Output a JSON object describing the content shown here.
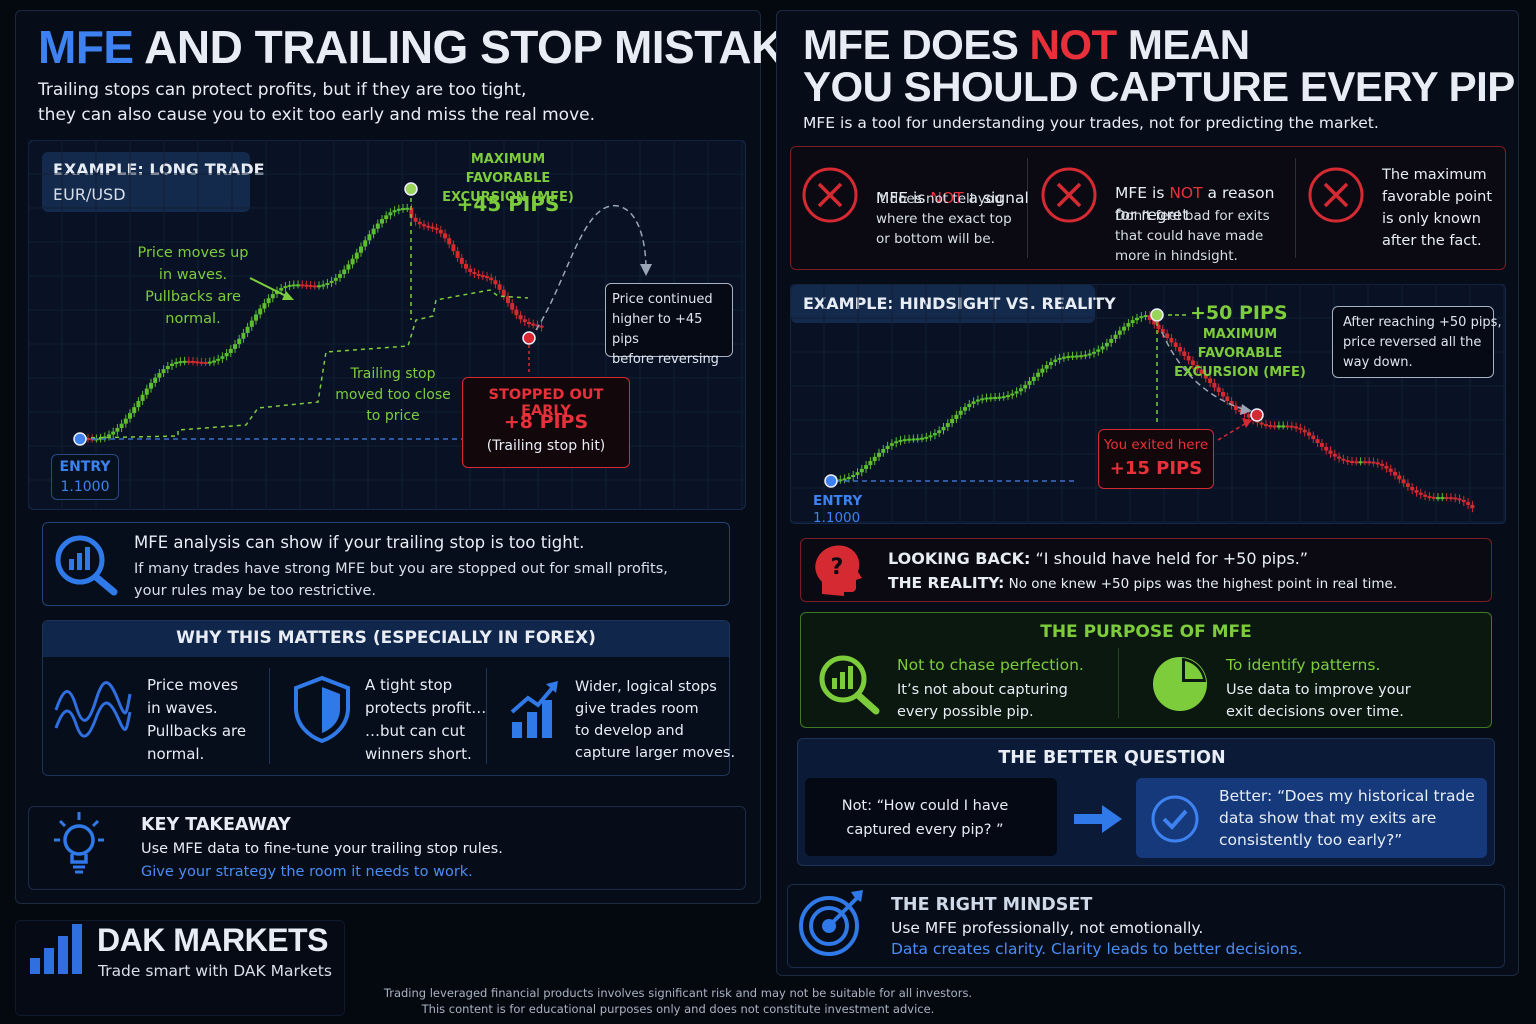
{
  "left": {
    "title_accent": "MFE",
    "title_rest": " AND TRAILING STOP MISTAKES",
    "subtitle": "Trailing stops can protect profits, but if they are too tight,\nthey can also cause you to exit too early and miss the real move.",
    "example": {
      "heading": "EXAMPLE: LONG TRADE",
      "pair": "EUR/USD"
    },
    "mfe_label": "MAXIMUM FAVORABLE\nEXCURSION (MFE)",
    "mfe_value": "+45 PIPS",
    "waves_note": "Price moves up\nin waves.\nPullbacks are\nnormal.",
    "trailing_note": "Trailing stop\nmoved too close\nto price",
    "continued_note": "Price continued\nhigher to +45 pips\nbefore reversing",
    "stopped": {
      "title": "STOPPED OUT EARLY",
      "value": "+8 PIPS",
      "sub": "(Trailing stop hit)"
    },
    "entry": {
      "label": "ENTRY",
      "price": "1.1000"
    },
    "analysis": {
      "title": "MFE analysis can show if your trailing stop is too tight.",
      "body": "If many trades have strong MFE but you are stopped out for small profits,\nyour rules may be too restrictive."
    },
    "why": {
      "heading": "WHY THIS MATTERS (ESPECIALLY IN FOREX)",
      "items": [
        {
          "icon": "wave-icon",
          "text": "Price moves\nin waves.\nPullbacks are\nnormal."
        },
        {
          "icon": "shield-icon",
          "text": "A tight stop\nprotects profit…\n…but can cut\nwinners short."
        },
        {
          "icon": "growth-chart-icon",
          "text": "Wider, logical stops\ngive trades room\nto develop and\ncapture larger moves."
        }
      ]
    },
    "takeaway": {
      "title": "KEY TAKEAWAY",
      "line1": "Use MFE data to fine-tune your trailing stop rules.",
      "line2": "Give your strategy the room it needs to work."
    }
  },
  "brand": {
    "name": "DAK MARKETS",
    "tagline": "Trade smart with DAK Markets"
  },
  "disclaimer": {
    "line1": "Trading leveraged financial products involves significant risk and may not be suitable for all investors.",
    "line2": "This content is for educational purposes only and does not constitute investment advice."
  },
  "right": {
    "title_l1a": "MFE DOES ",
    "title_l1b": "NOT",
    "title_l1c": " MEAN",
    "title_l2": "YOU SHOULD CAPTURE EVERY PIP",
    "subtitle": "MFE is a tool for understanding your trades, not for predicting the market.",
    "nots": [
      {
        "pre": "MFE is ",
        "not": "NOT",
        "post": " a signal",
        "body": "It does not tell you\nwhere the exact top\nor bottom will be."
      },
      {
        "pre": "MFE is ",
        "not": "NOT",
        "post": " a reason\nfor regret",
        "body": "Don't feel bad for exits\nthat could have made\nmore in hindsight."
      },
      {
        "pre": "",
        "not": "",
        "post": "",
        "body": "The maximum\nfavorable point\nis only known\nafter the fact."
      }
    ],
    "example": {
      "heading": "EXAMPLE: HINDSIGHT VS. REALITY"
    },
    "mfe_value": "+50 PIPS",
    "mfe_label": "MAXIMUM FAVORABLE\nEXCURSION (MFE)",
    "after_note": "After reaching +50 pips,\nprice reversed all the\nway down.",
    "exited": {
      "title": "You exited here",
      "value": "+15 PIPS"
    },
    "entry": {
      "label": "ENTRY",
      "price": "1.1000"
    },
    "looking": {
      "k1": "LOOKING BACK:",
      "v1": " “I should have held for +50 pips.”",
      "k2": "THE REALITY:",
      "v2": " No one knew +50 pips was the highest point in real time."
    },
    "purpose": {
      "heading": "THE PURPOSE OF MFE",
      "a_title": "Not to chase perfection.",
      "a_body": "It’s not about capturing\nevery possible pip.",
      "b_title": "To identify patterns.",
      "b_body": "Use data to improve your\nexit decisions over time."
    },
    "better": {
      "heading": "THE BETTER QUESTION",
      "not_q": "Not: “How could I have\ncaptured every pip? ”",
      "better_q": "Better: “Does my historical trade\ndata show that my exits are\nconsistently too early?”"
    },
    "mindset": {
      "title": "THE RIGHT MINDSET",
      "line1": "Use MFE professionally, not emotionally.",
      "line2": "Data creates clarity. Clarity leads to better decisions."
    }
  }
}
